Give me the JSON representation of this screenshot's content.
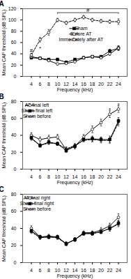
{
  "chart_data": [
    {
      "type": "line",
      "title": "A",
      "x": [
        4,
        6,
        8,
        10,
        12,
        14,
        16,
        18,
        20,
        22,
        24
      ],
      "xlabel": "Frequency (kHz)",
      "ylabel": "Mean CAP threshold (dB SPL)",
      "xlim": [
        2,
        26
      ],
      "xticks": [
        4,
        6,
        8,
        10,
        12,
        14,
        16,
        18,
        20,
        22,
        24
      ],
      "ylim": [
        0,
        120
      ],
      "yticks": [
        0,
        20,
        40,
        60,
        80,
        100,
        120
      ],
      "legend": "center right",
      "series": [
        {
          "name": "Sham",
          "color": "black",
          "marker": "square",
          "line_style": "solid",
          "values": [
            33,
            32,
            30,
            30,
            25,
            30,
            33,
            35,
            35,
            45,
            50
          ],
          "errors": [
            2,
            2,
            2,
            2,
            2,
            2,
            2,
            2,
            2,
            3,
            4
          ]
        },
        {
          "name": "Before AT",
          "color": "black",
          "marker": "circle",
          "line_style": "solid",
          "values": [
            35,
            32,
            28,
            22,
            23,
            26,
            33,
            35,
            33,
            40,
            50
          ],
          "errors": [
            2,
            2,
            2,
            2,
            2,
            2,
            2,
            2,
            2,
            3,
            4
          ]
        },
        {
          "name": "Immediately after AT",
          "color": "black",
          "marker": "circle",
          "line_style": "dashed",
          "values": [
            38,
            65,
            78,
            100,
            95,
            100,
            105,
            100,
            98,
            97,
            97
          ],
          "errors": [
            3,
            4,
            5,
            3,
            3,
            3,
            3,
            3,
            3,
            3,
            5
          ]
        }
      ],
      "annotations": [
        {
          "text": "#",
          "x": 17,
          "y": 114.5,
          "bracket": {
            "x1": 10,
            "x2": 24,
            "y": 113
          }
        },
        {
          "text": "#",
          "x": 4,
          "y": 43
        },
        {
          "text": "*",
          "x": 6,
          "y": 46
        }
      ]
    },
    {
      "type": "line",
      "title": "B",
      "x": [
        4,
        6,
        8,
        10,
        12,
        14,
        16,
        18,
        20,
        22,
        24
      ],
      "xlabel": "Frequency (kHz)",
      "ylabel": "Mean CAP threshold (dB SPL)",
      "xlim": [
        2,
        26
      ],
      "xticks": [
        4,
        6,
        8,
        10,
        12,
        14,
        16,
        18,
        20,
        22,
        24
      ],
      "ylim": [
        0,
        80
      ],
      "yticks": [
        0,
        20,
        40,
        60,
        80
      ],
      "legend": "upper left",
      "series": [
        {
          "name": "AT final left",
          "color": "black",
          "marker": "circle",
          "line_style": "solid",
          "values": [
            40,
            35,
            37,
            38,
            23,
            27,
            38,
            47,
            55,
            65,
            71
          ],
          "errors": [
            3,
            3,
            3,
            3,
            3,
            3,
            3,
            4,
            4,
            4,
            4
          ]
        },
        {
          "name": "Sham final left",
          "color": "black",
          "marker": "square",
          "line_style": "solid",
          "values": [
            37,
            28,
            32,
            30,
            22,
            27,
            35,
            36,
            35,
            35,
            57
          ],
          "errors": [
            2,
            2,
            2,
            2,
            2,
            2,
            2,
            3,
            3,
            4,
            4
          ]
        },
        {
          "name": "Sham before",
          "color": "black",
          "marker": "none",
          "line_style": "dashed",
          "values": [
            36,
            28,
            31,
            30,
            24,
            28,
            34,
            35,
            34,
            34,
            55
          ],
          "errors": [
            2,
            2,
            2,
            2,
            2,
            2,
            2,
            3,
            3,
            3,
            4
          ]
        }
      ],
      "annotations": [
        {
          "text": "*",
          "x": 22,
          "y": 68
        },
        {
          "text": "*",
          "x": 24,
          "y": 74
        }
      ]
    },
    {
      "type": "line",
      "title": "C",
      "x": [
        4,
        6,
        8,
        10,
        12,
        14,
        16,
        18,
        20,
        22,
        24
      ],
      "xlabel": "Frequency (kHz)",
      "ylabel": "Mean CAP threshold (dB SPL)",
      "xlim": [
        2,
        26
      ],
      "xticks": [
        4,
        6,
        8,
        10,
        12,
        14,
        16,
        18,
        20,
        22,
        24
      ],
      "ylim": [
        0,
        80
      ],
      "yticks": [
        0,
        20,
        40,
        60,
        80
      ],
      "legend": "upper left",
      "series": [
        {
          "name": "AT final right",
          "color": "black",
          "marker": "circle",
          "line_style": "solid",
          "values": [
            40,
            30,
            31,
            30,
            22,
            27,
            35,
            35,
            38,
            43,
            53
          ],
          "errors": [
            3,
            2,
            2,
            2,
            2,
            2,
            2,
            2,
            3,
            3,
            4
          ]
        },
        {
          "name": "Sham final right",
          "color": "black",
          "marker": "square",
          "line_style": "solid",
          "values": [
            37,
            30,
            30,
            30,
            22,
            27,
            34,
            34,
            36,
            40,
            46
          ],
          "errors": [
            2,
            2,
            2,
            2,
            2,
            2,
            2,
            2,
            2,
            3,
            3
          ]
        },
        {
          "name": "Sham before",
          "color": "black",
          "marker": "none",
          "line_style": "dashed",
          "values": [
            36,
            29,
            30,
            29,
            22,
            27,
            34,
            34,
            36,
            40,
            45
          ],
          "errors": [
            2,
            2,
            2,
            2,
            2,
            2,
            2,
            2,
            2,
            3,
            3
          ]
        }
      ]
    }
  ]
}
